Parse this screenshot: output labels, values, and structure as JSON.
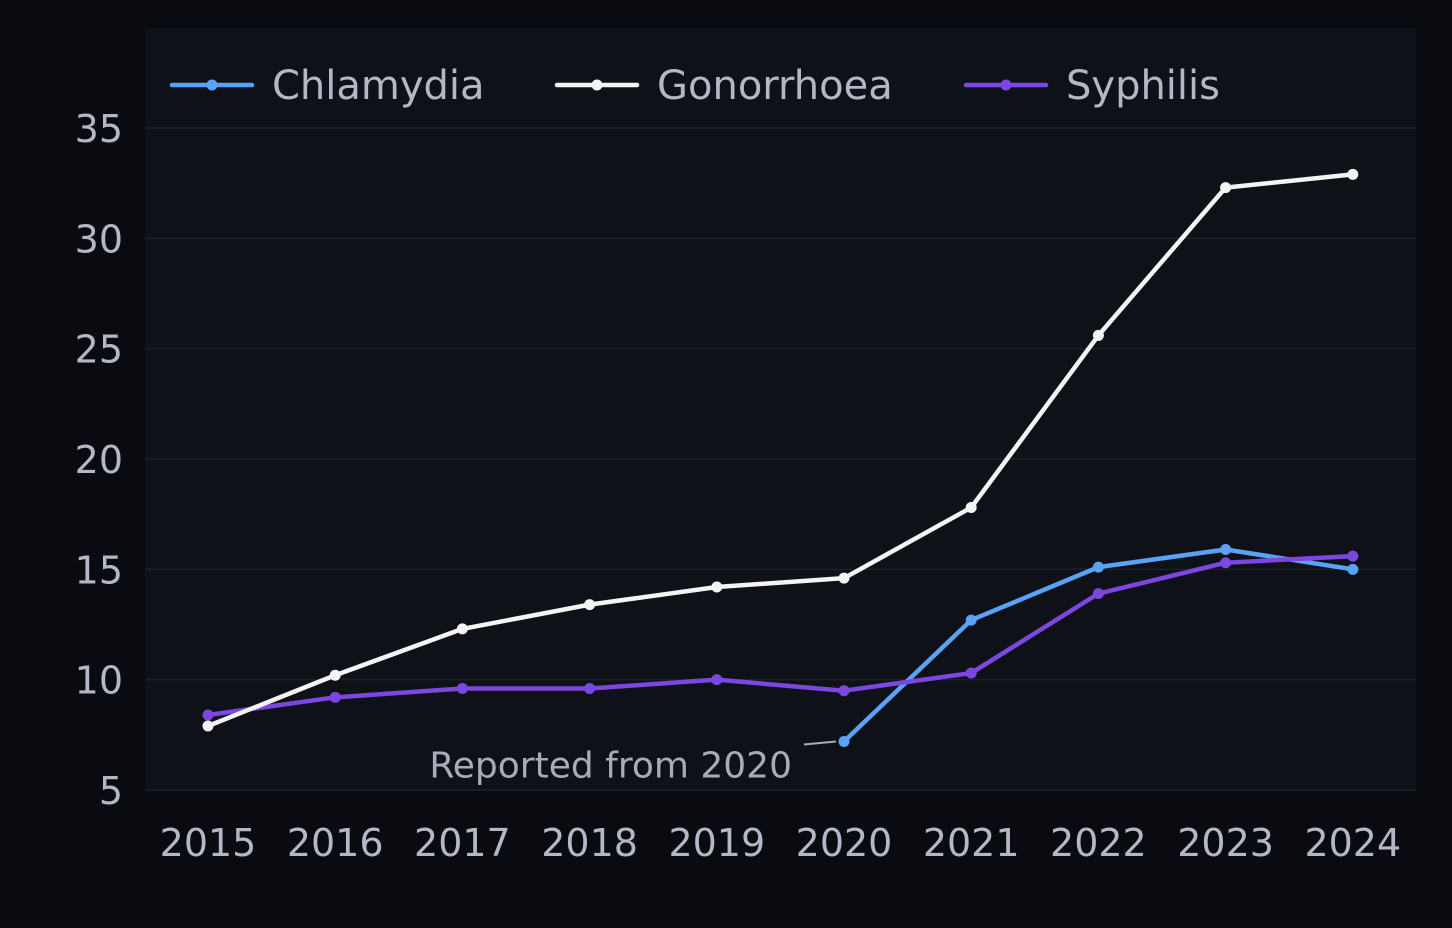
{
  "chart_data": {
    "type": "line",
    "title": "",
    "xlabel": "",
    "ylabel": "",
    "x": [
      "2015",
      "2016",
      "2017",
      "2018",
      "2019",
      "2020",
      "2021",
      "2022",
      "2023",
      "2024"
    ],
    "y_ticks": [
      "5",
      "10",
      "15",
      "20",
      "25",
      "30",
      "35"
    ],
    "ylim": [
      5,
      35
    ],
    "grid": "horizontal",
    "legend_position": "top-left",
    "series": [
      {
        "name": "Chlamydia",
        "color": "#5aa2f5",
        "values": [
          null,
          null,
          null,
          null,
          null,
          7.2,
          12.7,
          15.1,
          15.9,
          15.0
        ]
      },
      {
        "name": "Gonorrhoea",
        "color": "#f4f4f5",
        "values": [
          7.9,
          10.2,
          12.3,
          13.4,
          14.2,
          14.6,
          17.8,
          25.6,
          32.3,
          32.9
        ]
      },
      {
        "name": "Syphilis",
        "color": "#7c47e0",
        "values": [
          8.4,
          9.2,
          9.6,
          9.6,
          10.0,
          9.5,
          10.3,
          13.9,
          15.3,
          15.6
        ]
      }
    ],
    "annotations": [
      {
        "text": "Reported from 2020",
        "series": "Chlamydia",
        "x": "2020"
      }
    ],
    "colors": {
      "page_background": "#0a0b10",
      "plot_background": "#0f1119",
      "gridline": "#1e2029",
      "tick_text": "#b4b7c5",
      "legend_text": "#b4b7c5",
      "annotation_text": "#a9abb8"
    }
  }
}
